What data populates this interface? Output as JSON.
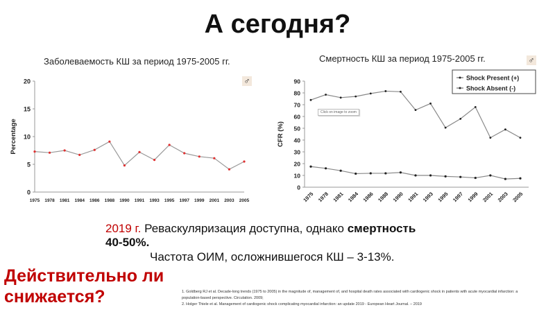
{
  "slide": {
    "title": "А сегодня?",
    "line1_year": "2019 г.",
    "line1_text": " Реваскуляризация доступна, однако ",
    "line1_bold": "смертность",
    "line2_bold": "40-50%.",
    "line3": "Частота ОИМ, осложнившегося КШ – 3-13%.",
    "alert_line1": "Действительно ли",
    "alert_line2": "снижается?",
    "refs": [
      "1. Goldberg RJ et al. Decade-long trends (1975 to 2005) in the magnitude of, management of, and hospital death rates associated with cardiogenic shock in patients with acute myocardial infarction: a",
      "population-based perspective. Circulation. 2009;",
      "2. Holger Thiele et al. Management of cardiogenic shock complicating myocardial infarction: an update 2019 - European Heart Journal. – 2019"
    ],
    "tooltip": "Click on image to zoom",
    "badge_icon": "male-symbol-icon"
  },
  "chart_data": [
    {
      "type": "line",
      "title": "Заболеваемость КШ за период 1975-2005 гг.",
      "ylabel": "Percentage",
      "xlabel": "",
      "ylim": [
        0,
        20
      ],
      "yticks": [
        0,
        5,
        10,
        15,
        20
      ],
      "categories": [
        "1975",
        "1978",
        "1981",
        "1984",
        "1986",
        "1988",
        "1990",
        "1991",
        "1993",
        "1995",
        "1997",
        "1999",
        "2001",
        "2003",
        "2005"
      ],
      "series": [
        {
          "values": [
            7.3,
            7.1,
            7.5,
            6.7,
            7.6,
            9.1,
            4.8,
            7.2,
            5.8,
            8.5,
            7.0,
            6.4,
            6.1,
            4.1,
            5.5
          ],
          "line_color": "#999999",
          "marker_color": "#e03030"
        }
      ],
      "grid": false
    },
    {
      "type": "line",
      "title": "Смертность КШ за период 1975-2005 гг.",
      "ylabel": "CFR (%)",
      "xlabel": "",
      "ylim": [
        0,
        90
      ],
      "yticks": [
        0,
        10,
        20,
        30,
        40,
        50,
        60,
        70,
        80,
        90
      ],
      "categories": [
        "1975",
        "1978",
        "1981",
        "1984",
        "1986",
        "1988",
        "1990",
        "1991",
        "1993",
        "1995",
        "1997",
        "1999",
        "2001",
        "2003",
        "2005"
      ],
      "series": [
        {
          "name": "Shock Present (+)",
          "values": [
            74,
            78.5,
            76,
            77,
            79.5,
            81.5,
            81,
            65.5,
            71,
            50.5,
            58,
            68,
            42,
            49,
            42
          ],
          "line_color": "#888888",
          "marker_color": "#222222"
        },
        {
          "name": "Shock Absent (-)",
          "values": [
            17.5,
            16,
            14,
            11.5,
            11.8,
            11.8,
            12.5,
            10,
            10,
            9.2,
            8.7,
            7.9,
            10,
            7,
            7.5
          ],
          "line_color": "#888888",
          "marker_color": "#222222"
        }
      ],
      "legend": "top-right",
      "grid": false
    }
  ]
}
